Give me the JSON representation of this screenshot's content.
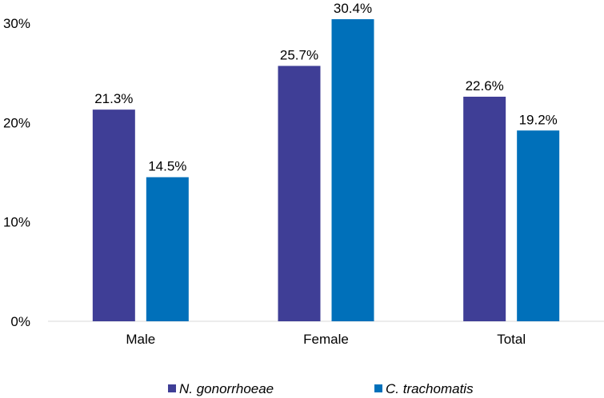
{
  "chart_data": {
    "type": "bar",
    "title": "",
    "xlabel": "",
    "ylabel": "",
    "categories": [
      "Male",
      "Female",
      "Total"
    ],
    "series": [
      {
        "name": "N. gonorrhoeae",
        "values": [
          21.3,
          25.7,
          22.6
        ],
        "labels": [
          "21.3%",
          "25.7%",
          "22.6%"
        ],
        "color": "#3F3E96"
      },
      {
        "name": "C. trachomatis",
        "values": [
          14.5,
          30.4,
          19.2
        ],
        "labels": [
          "14.5%",
          "30.4%",
          "19.2%"
        ],
        "color": "#0070BA"
      }
    ],
    "ylim": [
      0,
      30
    ],
    "yticks": [
      0,
      10,
      20,
      30
    ],
    "ytick_labels": [
      "0%",
      "10%",
      "20%",
      "30%"
    ],
    "grid": false,
    "legend_position": "bottom"
  }
}
